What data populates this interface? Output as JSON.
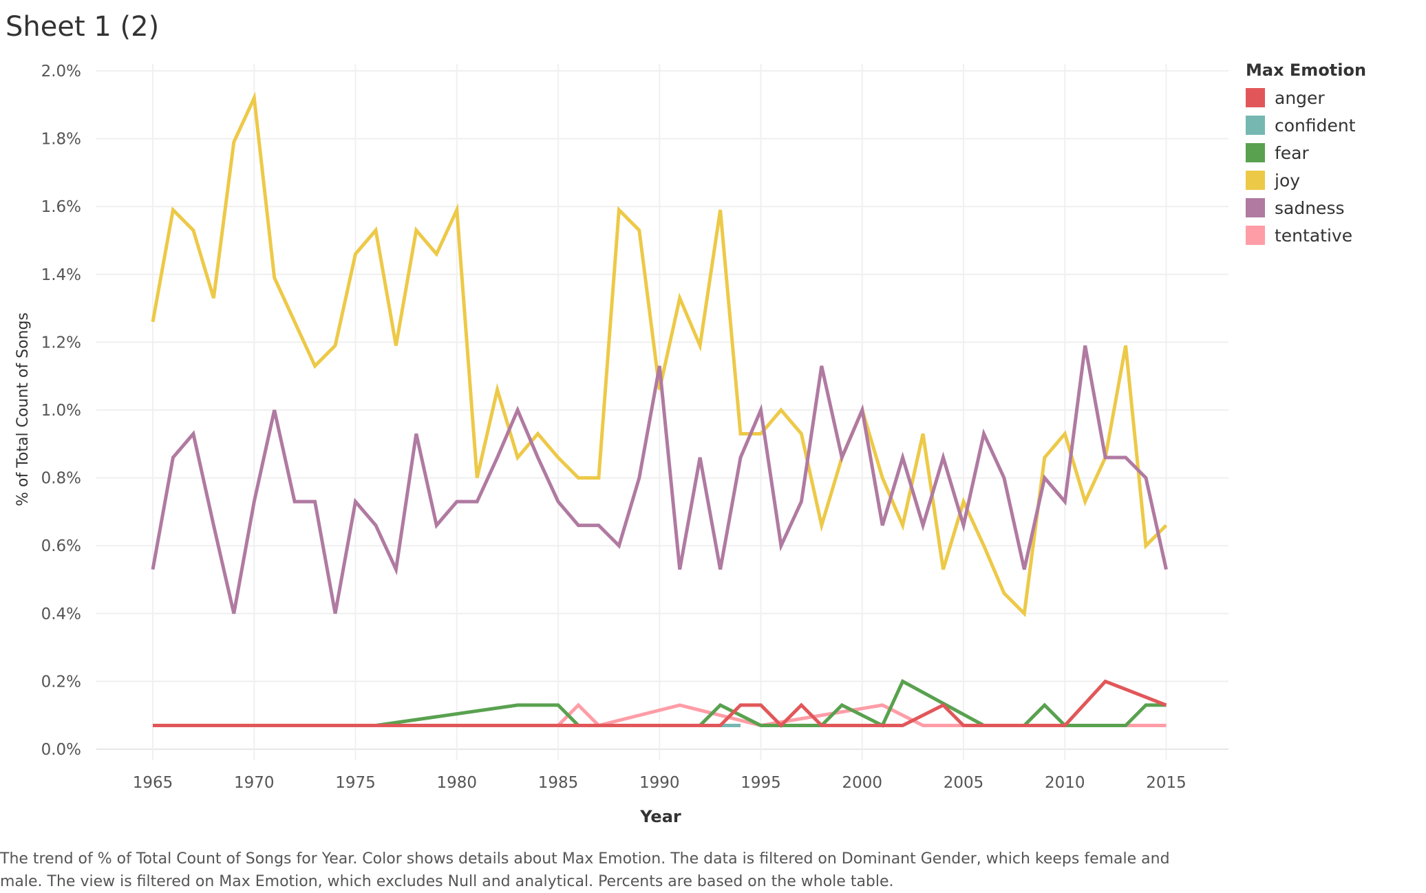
{
  "title": "Sheet 1 (2)",
  "caption_line1": "The trend of % of Total Count of Songs for Year.  Color shows details about Max Emotion. The data is filtered on Dominant Gender, which keeps female and",
  "caption_line2": "male. The view is filtered on Max Emotion, which excludes Null and analytical. Percents are based on the whole table.",
  "legend": {
    "title": "Max Emotion",
    "items": [
      {
        "label": "anger",
        "color": "#e15759"
      },
      {
        "label": "confident",
        "color": "#76b7b2"
      },
      {
        "label": "fear",
        "color": "#59a14f"
      },
      {
        "label": "joy",
        "color": "#edc948"
      },
      {
        "label": "sadness",
        "color": "#b07aa1"
      },
      {
        "label": "tentative",
        "color": "#ff9da7"
      }
    ]
  },
  "chart_data": {
    "type": "line",
    "title": "",
    "xlabel": "Year",
    "ylabel": "% of Total Count of Songs",
    "xlim": [
      1965,
      2015
    ],
    "ylim": [
      0,
      2.0
    ],
    "x_ticks": [
      "1965",
      "1970",
      "1975",
      "1980",
      "1985",
      "1990",
      "1995",
      "2000",
      "2005",
      "2010",
      "2015"
    ],
    "y_ticks": [
      "0.0%",
      "0.2%",
      "0.4%",
      "0.6%",
      "0.8%",
      "1.0%",
      "1.2%",
      "1.4%",
      "1.6%",
      "1.8%",
      "2.0%"
    ],
    "grid": true,
    "legend_position": "top-right",
    "series": [
      {
        "name": "joy",
        "color": "#edc948",
        "points": [
          [
            1965,
            1.26
          ],
          [
            1966,
            1.59
          ],
          [
            1967,
            1.53
          ],
          [
            1968,
            1.33
          ],
          [
            1969,
            1.79
          ],
          [
            1970,
            1.92
          ],
          [
            1971,
            1.39
          ],
          [
            1972,
            1.26
          ],
          [
            1973,
            1.13
          ],
          [
            1974,
            1.19
          ],
          [
            1975,
            1.46
          ],
          [
            1976,
            1.53
          ],
          [
            1977,
            1.19
          ],
          [
            1978,
            1.53
          ],
          [
            1979,
            1.46
          ],
          [
            1980,
            1.59
          ],
          [
            1981,
            0.8
          ],
          [
            1982,
            1.06
          ],
          [
            1983,
            0.86
          ],
          [
            1984,
            0.93
          ],
          [
            1985,
            0.86
          ],
          [
            1986,
            0.8
          ],
          [
            1987,
            0.8
          ],
          [
            1988,
            1.59
          ],
          [
            1989,
            1.53
          ],
          [
            1990,
            1.06
          ],
          [
            1991,
            1.33
          ],
          [
            1992,
            1.19
          ],
          [
            1993,
            1.59
          ],
          [
            1994,
            0.93
          ],
          [
            1995,
            0.93
          ],
          [
            1996,
            1.0
          ],
          [
            1997,
            0.93
          ],
          [
            1998,
            0.66
          ],
          [
            1999,
            0.86
          ],
          [
            2000,
            1.0
          ],
          [
            2001,
            0.8
          ],
          [
            2002,
            0.66
          ],
          [
            2003,
            0.93
          ],
          [
            2004,
            0.53
          ],
          [
            2005,
            0.73
          ],
          [
            2006,
            0.6
          ],
          [
            2007,
            0.46
          ],
          [
            2008,
            0.4
          ],
          [
            2009,
            0.86
          ],
          [
            2010,
            0.93
          ],
          [
            2011,
            0.73
          ],
          [
            2012,
            0.86
          ],
          [
            2013,
            1.19
          ],
          [
            2014,
            0.6
          ],
          [
            2015,
            0.66
          ]
        ]
      },
      {
        "name": "sadness",
        "color": "#b07aa1",
        "points": [
          [
            1965,
            0.53
          ],
          [
            1966,
            0.86
          ],
          [
            1967,
            0.93
          ],
          [
            1968,
            0.66
          ],
          [
            1969,
            0.4
          ],
          [
            1970,
            0.73
          ],
          [
            1971,
            1.0
          ],
          [
            1972,
            0.73
          ],
          [
            1973,
            0.73
          ],
          [
            1974,
            0.4
          ],
          [
            1975,
            0.73
          ],
          [
            1976,
            0.66
          ],
          [
            1977,
            0.53
          ],
          [
            1978,
            0.93
          ],
          [
            1979,
            0.66
          ],
          [
            1980,
            0.73
          ],
          [
            1981,
            0.73
          ],
          [
            1982,
            0.86
          ],
          [
            1983,
            1.0
          ],
          [
            1984,
            0.86
          ],
          [
            1985,
            0.73
          ],
          [
            1986,
            0.66
          ],
          [
            1987,
            0.66
          ],
          [
            1988,
            0.6
          ],
          [
            1989,
            0.8
          ],
          [
            1990,
            1.13
          ],
          [
            1991,
            0.53
          ],
          [
            1992,
            0.86
          ],
          [
            1993,
            0.53
          ],
          [
            1994,
            0.86
          ],
          [
            1995,
            1.0
          ],
          [
            1996,
            0.6
          ],
          [
            1997,
            0.73
          ],
          [
            1998,
            1.13
          ],
          [
            1999,
            0.86
          ],
          [
            2000,
            1.0
          ],
          [
            2001,
            0.66
          ],
          [
            2002,
            0.86
          ],
          [
            2003,
            0.66
          ],
          [
            2004,
            0.86
          ],
          [
            2005,
            0.66
          ],
          [
            2006,
            0.93
          ],
          [
            2007,
            0.8
          ],
          [
            2008,
            0.53
          ],
          [
            2009,
            0.8
          ],
          [
            2010,
            0.73
          ],
          [
            2011,
            1.19
          ],
          [
            2012,
            0.86
          ],
          [
            2013,
            0.86
          ],
          [
            2014,
            0.8
          ],
          [
            2015,
            0.53
          ]
        ]
      },
      {
        "name": "tentative",
        "color": "#ff9da7",
        "points": [
          [
            1965,
            0.07
          ],
          [
            1985,
            0.07
          ],
          [
            1986,
            0.13
          ],
          [
            1987,
            0.07
          ],
          [
            1991,
            0.13
          ],
          [
            1995,
            0.07
          ],
          [
            2001,
            0.13
          ],
          [
            2003,
            0.07
          ],
          [
            2015,
            0.07
          ]
        ]
      },
      {
        "name": "confident",
        "color": "#76b7b2",
        "points": [
          [
            1990,
            0.07
          ],
          [
            1994,
            0.07
          ]
        ]
      },
      {
        "name": "fear",
        "color": "#59a14f",
        "points": [
          [
            1965,
            0.07
          ],
          [
            1976,
            0.07
          ],
          [
            1983,
            0.13
          ],
          [
            1985,
            0.13
          ],
          [
            1986,
            0.07
          ],
          [
            1992,
            0.07
          ],
          [
            1993,
            0.13
          ],
          [
            1995,
            0.07
          ],
          [
            1998,
            0.07
          ],
          [
            1999,
            0.13
          ],
          [
            2001,
            0.07
          ],
          [
            2002,
            0.2
          ],
          [
            2006,
            0.07
          ],
          [
            2008,
            0.07
          ],
          [
            2009,
            0.13
          ],
          [
            2010,
            0.07
          ],
          [
            2013,
            0.07
          ],
          [
            2014,
            0.13
          ],
          [
            2015,
            0.13
          ]
        ]
      },
      {
        "name": "anger",
        "color": "#e15759",
        "points": [
          [
            1965,
            0.07
          ],
          [
            1993,
            0.07
          ],
          [
            1994,
            0.13
          ],
          [
            1995,
            0.13
          ],
          [
            1996,
            0.07
          ],
          [
            1997,
            0.13
          ],
          [
            1998,
            0.07
          ],
          [
            2002,
            0.07
          ],
          [
            2004,
            0.13
          ],
          [
            2005,
            0.07
          ],
          [
            2010,
            0.07
          ],
          [
            2012,
            0.2
          ],
          [
            2015,
            0.13
          ]
        ]
      }
    ]
  }
}
